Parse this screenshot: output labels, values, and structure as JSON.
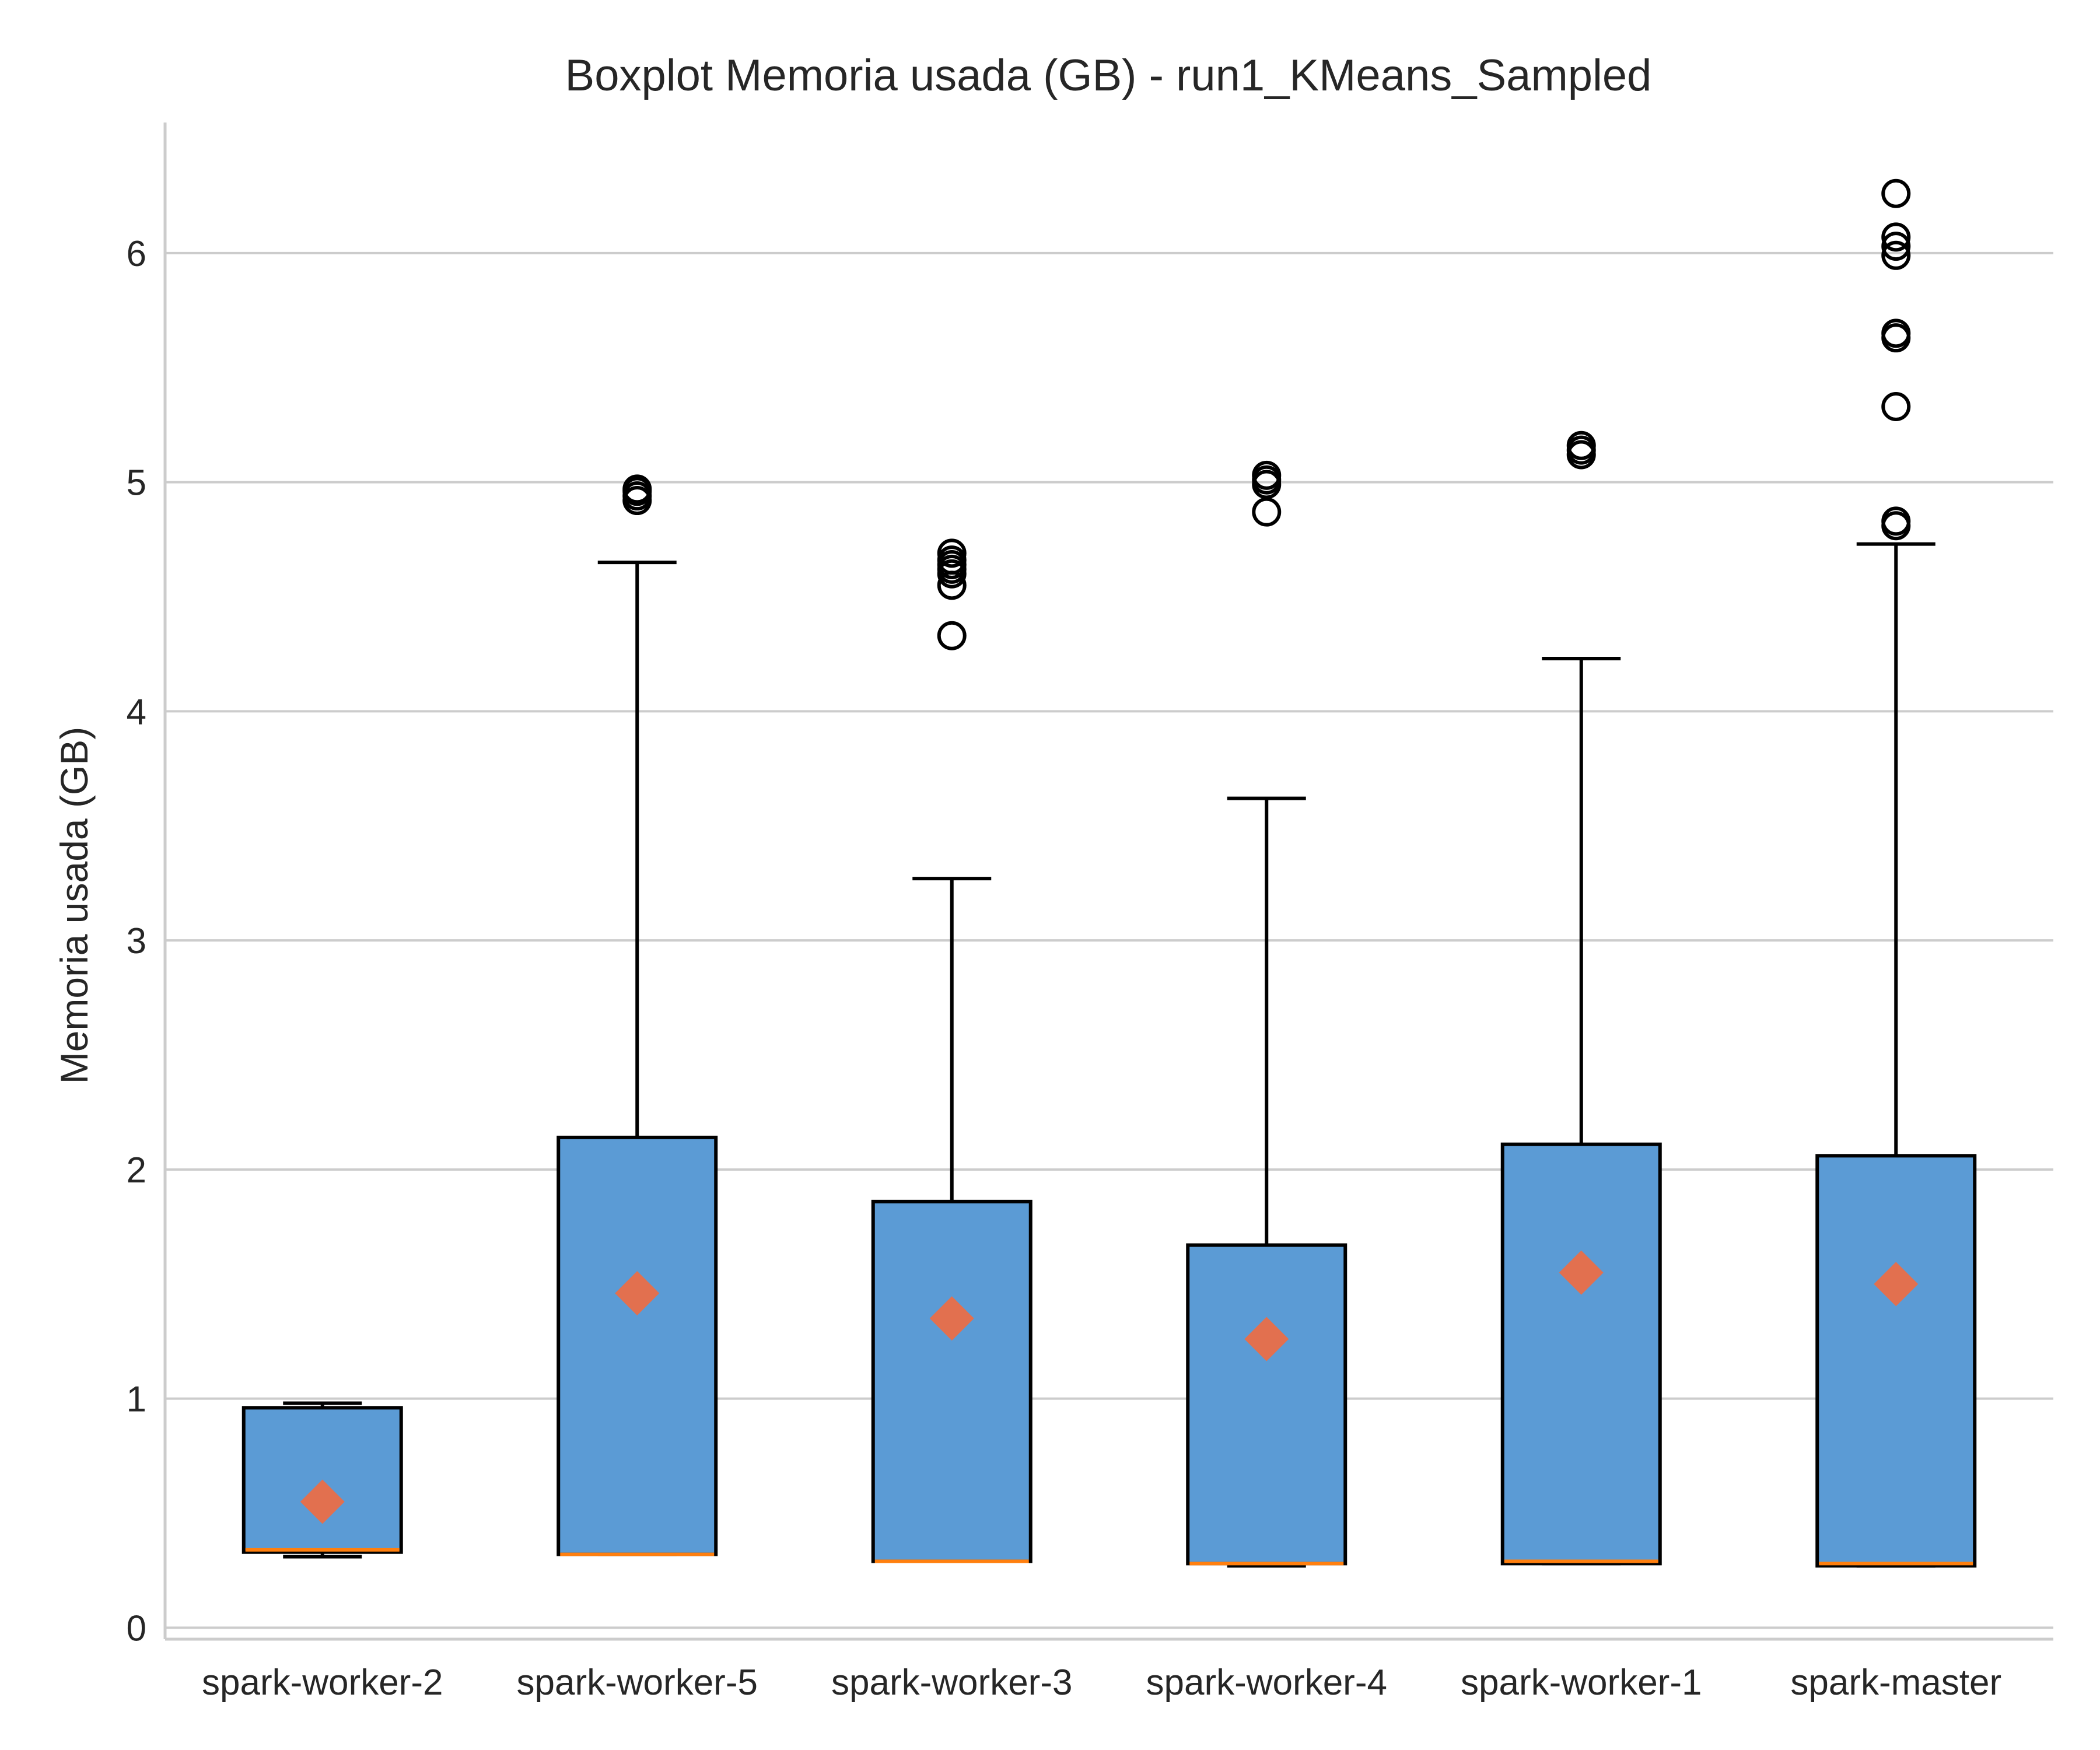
{
  "chart_data": {
    "type": "boxplot",
    "title": "Boxplot Memoria usada (GB) - run1_KMeans_Sampled",
    "xlabel": "",
    "ylabel": "Memoria usada (GB)",
    "ylim": [
      -0.05,
      6.57
    ],
    "yticks": [
      0,
      1,
      2,
      3,
      4,
      5,
      6
    ],
    "grid": "horizontal",
    "categories": [
      "spark-worker-2",
      "spark-worker-5",
      "spark-worker-3",
      "spark-worker-4",
      "spark-worker-1",
      "spark-master"
    ],
    "series": [
      {
        "whisker_low": [
          0.31,
          0.32,
          0.29,
          0.27,
          0.28,
          0.27
        ],
        "q1": [
          0.33,
          0.32,
          0.29,
          0.28,
          0.28,
          0.27
        ],
        "median": [
          0.34,
          0.32,
          0.29,
          0.28,
          0.29,
          0.28
        ],
        "q3": [
          0.96,
          2.14,
          1.86,
          1.67,
          2.11,
          2.06
        ],
        "whisker_high": [
          0.98,
          4.65,
          3.27,
          3.62,
          4.23,
          4.73
        ],
        "mean": [
          0.55,
          1.46,
          1.35,
          1.26,
          1.55,
          1.5
        ],
        "outliers": [
          [],
          [
            4.92,
            4.94,
            4.96,
            4.97
          ],
          [
            4.33,
            4.55,
            4.6,
            4.62,
            4.64,
            4.66,
            4.69
          ],
          [
            4.87,
            4.99,
            5.01,
            5.03
          ],
          [
            5.12,
            5.14,
            5.16
          ],
          [
            4.81,
            4.83,
            5.33,
            5.63,
            5.65,
            5.99,
            6.03,
            6.07,
            6.26
          ]
        ]
      }
    ],
    "colors": {
      "box_fill": "#5b9bd5",
      "box_edge": "#000000",
      "median": "#ff7f0e",
      "mean_marker": "#e2704f",
      "grid": "#cccccc",
      "axis": "#cccccc",
      "text": "#262626"
    }
  }
}
